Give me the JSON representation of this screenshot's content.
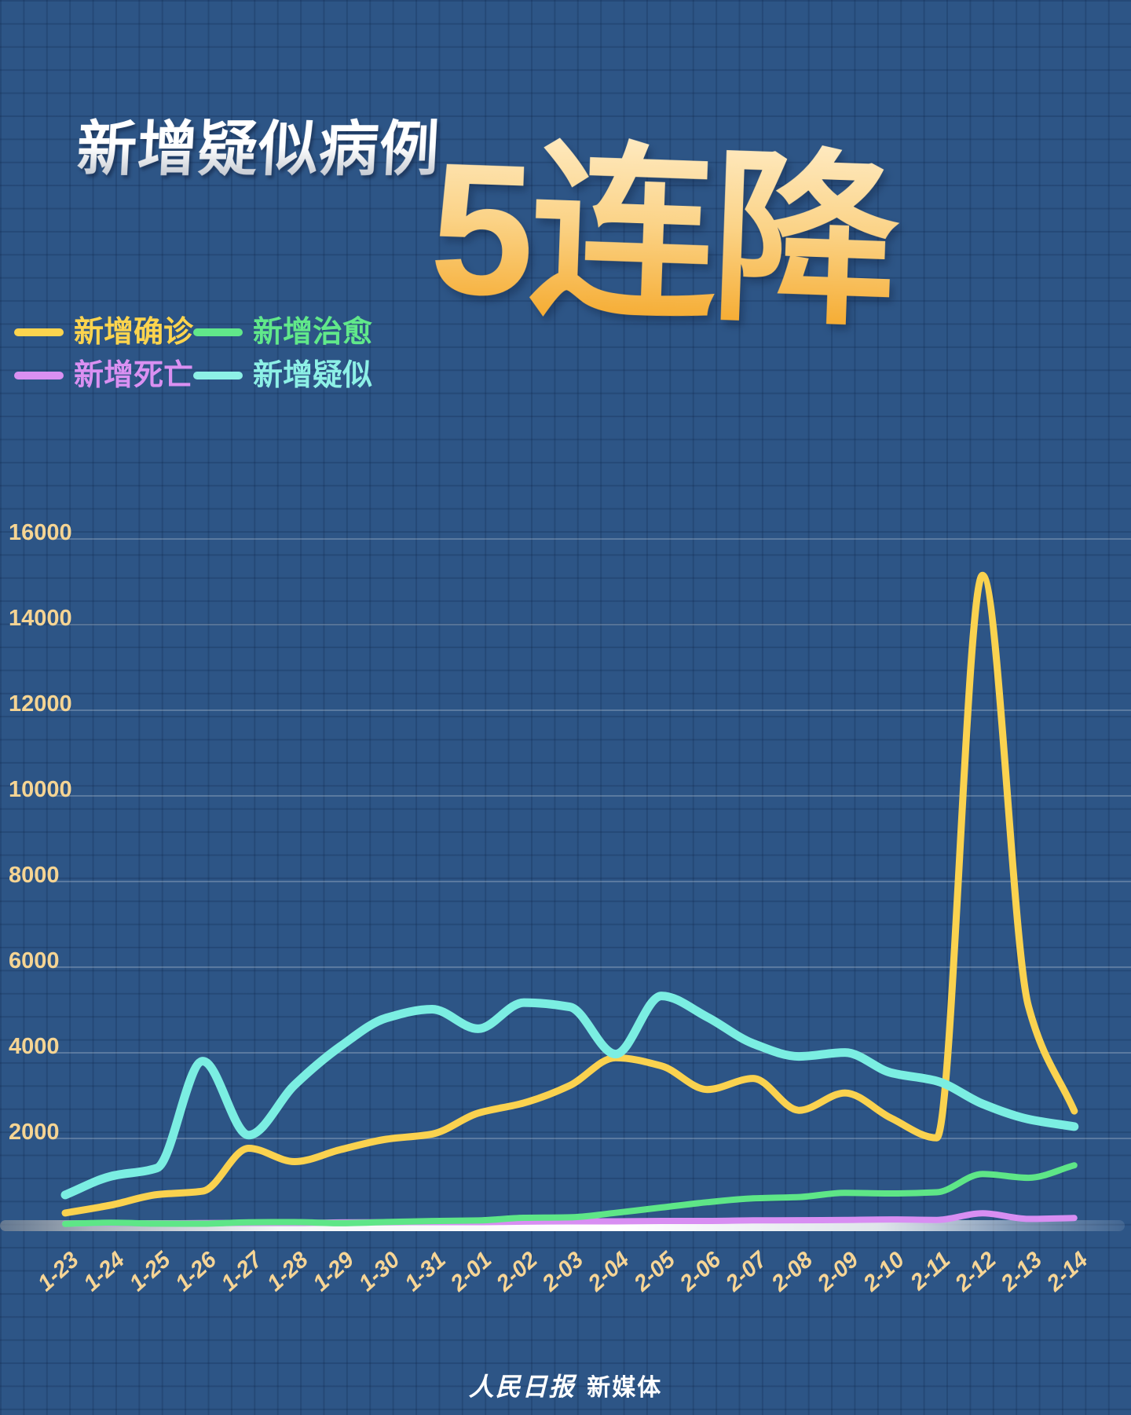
{
  "page": {
    "background": "#2d5586",
    "grid_line": "rgba(10,32,66,0.22)"
  },
  "header": {
    "title": "新增疑似病例",
    "headline": "5连降",
    "title_color_top": "#ffffff",
    "title_color_bottom": "#b6bcc6",
    "headline_color_top": "#ffeecb",
    "headline_color_bottom": "#f4a21d"
  },
  "legend": [
    {
      "label": "新增确诊",
      "color": "#fcd44e"
    },
    {
      "label": "新增治愈",
      "color": "#61e88a"
    },
    {
      "label": "新增死亡",
      "color": "#da90f2"
    },
    {
      "label": "新增疑似",
      "color": "#8df0e6"
    }
  ],
  "chart_data": {
    "type": "line",
    "title": "新增疑似病例",
    "xlabel": "",
    "ylabel": "",
    "grid": true,
    "smooth": true,
    "legend_position": "top-left",
    "ylim": [
      0,
      16000
    ],
    "yticks": [
      16000,
      14000,
      12000,
      10000,
      8000,
      6000,
      4000,
      2000
    ],
    "axis_label_color": "#f5d493",
    "gridline_color": "rgba(255,255,255,0.22)",
    "categories": [
      "1-23",
      "1-24",
      "1-25",
      "1-26",
      "1-27",
      "1-28",
      "1-29",
      "1-30",
      "1-31",
      "2-01",
      "2-02",
      "2-03",
      "2-04",
      "2-05",
      "2-06",
      "2-07",
      "2-08",
      "2-09",
      "2-10",
      "2-11",
      "2-12",
      "2-13",
      "2-14"
    ],
    "series": [
      {
        "name": "新增确诊",
        "color": "#fad24f",
        "width": 9,
        "values": [
          259,
          444,
          688,
          769,
          1771,
          1459,
          1737,
          1982,
          2102,
          2590,
          2829,
          3235,
          3887,
          3694,
          3143,
          3401,
          2656,
          3062,
          2478,
          2015,
          15152,
          5090,
          2641
        ]
      },
      {
        "name": "新增死亡",
        "color": "#d88ef2",
        "width": 8,
        "values": [
          8,
          16,
          15,
          24,
          26,
          26,
          38,
          43,
          46,
          45,
          57,
          64,
          65,
          73,
          73,
          86,
          89,
          97,
          108,
          97,
          254,
          121,
          143
        ]
      },
      {
        "name": "新增治愈",
        "color": "#5ee687",
        "width": 8,
        "values": [
          6,
          31,
          11,
          9,
          43,
          46,
          21,
          47,
          72,
          85,
          147,
          157,
          262,
          387,
          510,
          600,
          632,
          730,
          716,
          744,
          1171,
          1081,
          1373
        ]
      },
      {
        "name": "新增疑似",
        "color": "#7beee2",
        "width": 11,
        "values": [
          680,
          1118,
          1309,
          3806,
          2077,
          3248,
          4148,
          4812,
          5019,
          4562,
          5173,
          5072,
          3971,
          5328,
          4833,
          4214,
          3916,
          4008,
          3536,
          3342,
          2807,
          2450,
          2277
        ]
      }
    ]
  },
  "footer": {
    "brand": "人民日报",
    "suffix": "新媒体"
  }
}
